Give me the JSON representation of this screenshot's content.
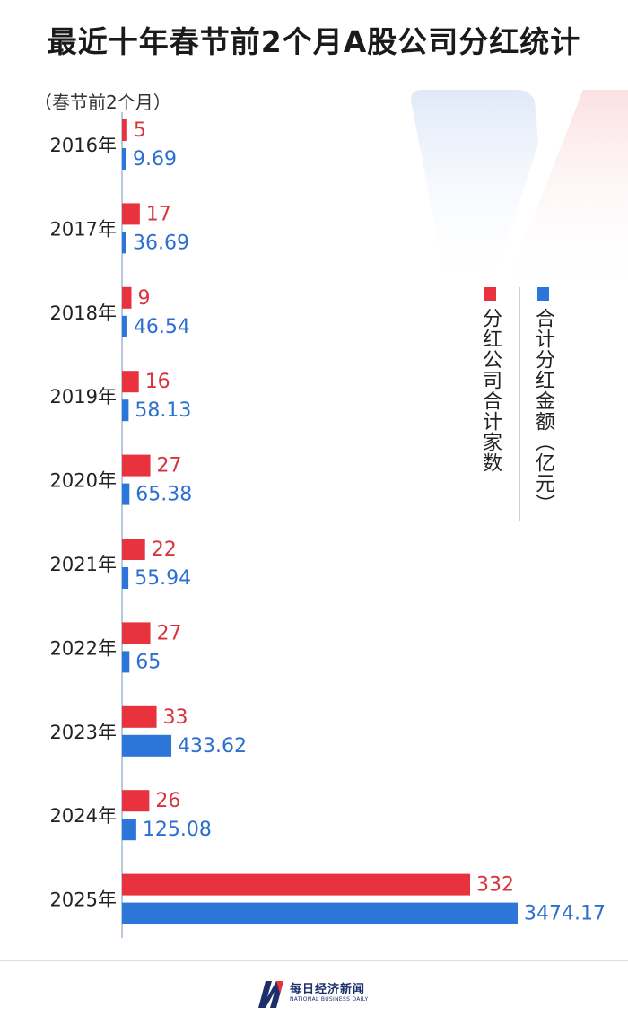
{
  "title": "最近十年春节前2个月A股公司分红统计",
  "unit_note": "（春节前2个月）",
  "colors": {
    "count": "#e8333f",
    "amount": "#2b76d8",
    "count_label": "#d8343d",
    "amount_label": "#2b6fcf"
  },
  "legend": {
    "count_label": "分红公司合计家数",
    "amount_label": "合计分红金额（亿元）"
  },
  "footer": {
    "logo_text": "每日经济新闻",
    "logo_sub": "NATIONAL BUSINESS DAILY"
  },
  "chart_data": {
    "type": "bar",
    "orientation": "horizontal",
    "categories": [
      "2016年",
      "2017年",
      "2018年",
      "2019年",
      "2020年",
      "2021年",
      "2022年",
      "2023年",
      "2024年",
      "2025年"
    ],
    "series": [
      {
        "name": "分红公司合计家数",
        "values": [
          5,
          17,
          9,
          16,
          27,
          22,
          27,
          33,
          26,
          332
        ],
        "labels": [
          "5",
          "17",
          "9",
          "16",
          "27",
          "22",
          "27",
          "33",
          "26",
          "332"
        ]
      },
      {
        "name": "合计分红金额（亿元）",
        "values": [
          9.69,
          36.69,
          46.54,
          58.13,
          65.38,
          55.94,
          65,
          433.62,
          125.08,
          3474.17
        ],
        "labels": [
          "9.69",
          "36.69",
          "46.54",
          "58.13",
          "65.38",
          "55.94",
          "65",
          "433.62",
          "125.08",
          "3474.17"
        ]
      }
    ],
    "title": "最近十年春节前2个月A股公司分红统计",
    "xlabel": "",
    "ylabel": "",
    "grid": false,
    "legend_position": "right"
  }
}
